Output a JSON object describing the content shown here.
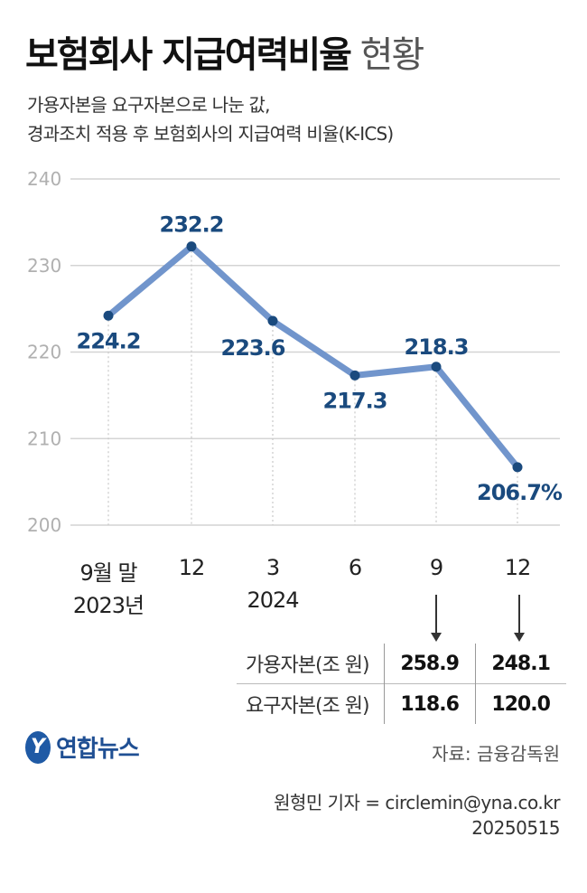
{
  "title": {
    "bold": "보험회사 지급여력비율",
    "light": "현황"
  },
  "subtitle": {
    "line1": "가용자본을 요구자본으로 나눈 값,",
    "line2": "경과조치 적용 후 보험회사의 지급여력 비율(K-ICS)"
  },
  "chart_data": {
    "type": "line",
    "categories": [
      "9월 말",
      "12",
      "3",
      "6",
      "9",
      "12"
    ],
    "year_labels": [
      "2023년",
      "",
      "2024",
      "",
      "",
      ""
    ],
    "values": [
      224.2,
      232.2,
      223.6,
      217.3,
      218.3,
      206.7
    ],
    "data_labels": [
      "224.2",
      "232.2",
      "223.6",
      "217.3",
      "218.3",
      "206.7%"
    ],
    "yticks": [
      200,
      210,
      220,
      230,
      240
    ],
    "ylim": [
      200,
      240
    ],
    "grid": true,
    "colors": {
      "line": "#7195cc",
      "point": "#1a4a7e",
      "label": "#1a4a7e",
      "grid": "#d4d4d4",
      "tick": "#b0b0b0"
    }
  },
  "capital_table": {
    "rows": [
      {
        "label": "가용자본(조 원)",
        "values": [
          "258.9",
          "248.1"
        ]
      },
      {
        "label": "요구자본(조 원)",
        "values": [
          "118.6",
          "120.0"
        ]
      }
    ]
  },
  "logo": {
    "mark": "Y",
    "text": "연합뉴스"
  },
  "source": "자료: 금융감독원",
  "credit": {
    "line1": "원형민 기자 = circlemin@yna.co.kr",
    "line2": "20250515"
  }
}
